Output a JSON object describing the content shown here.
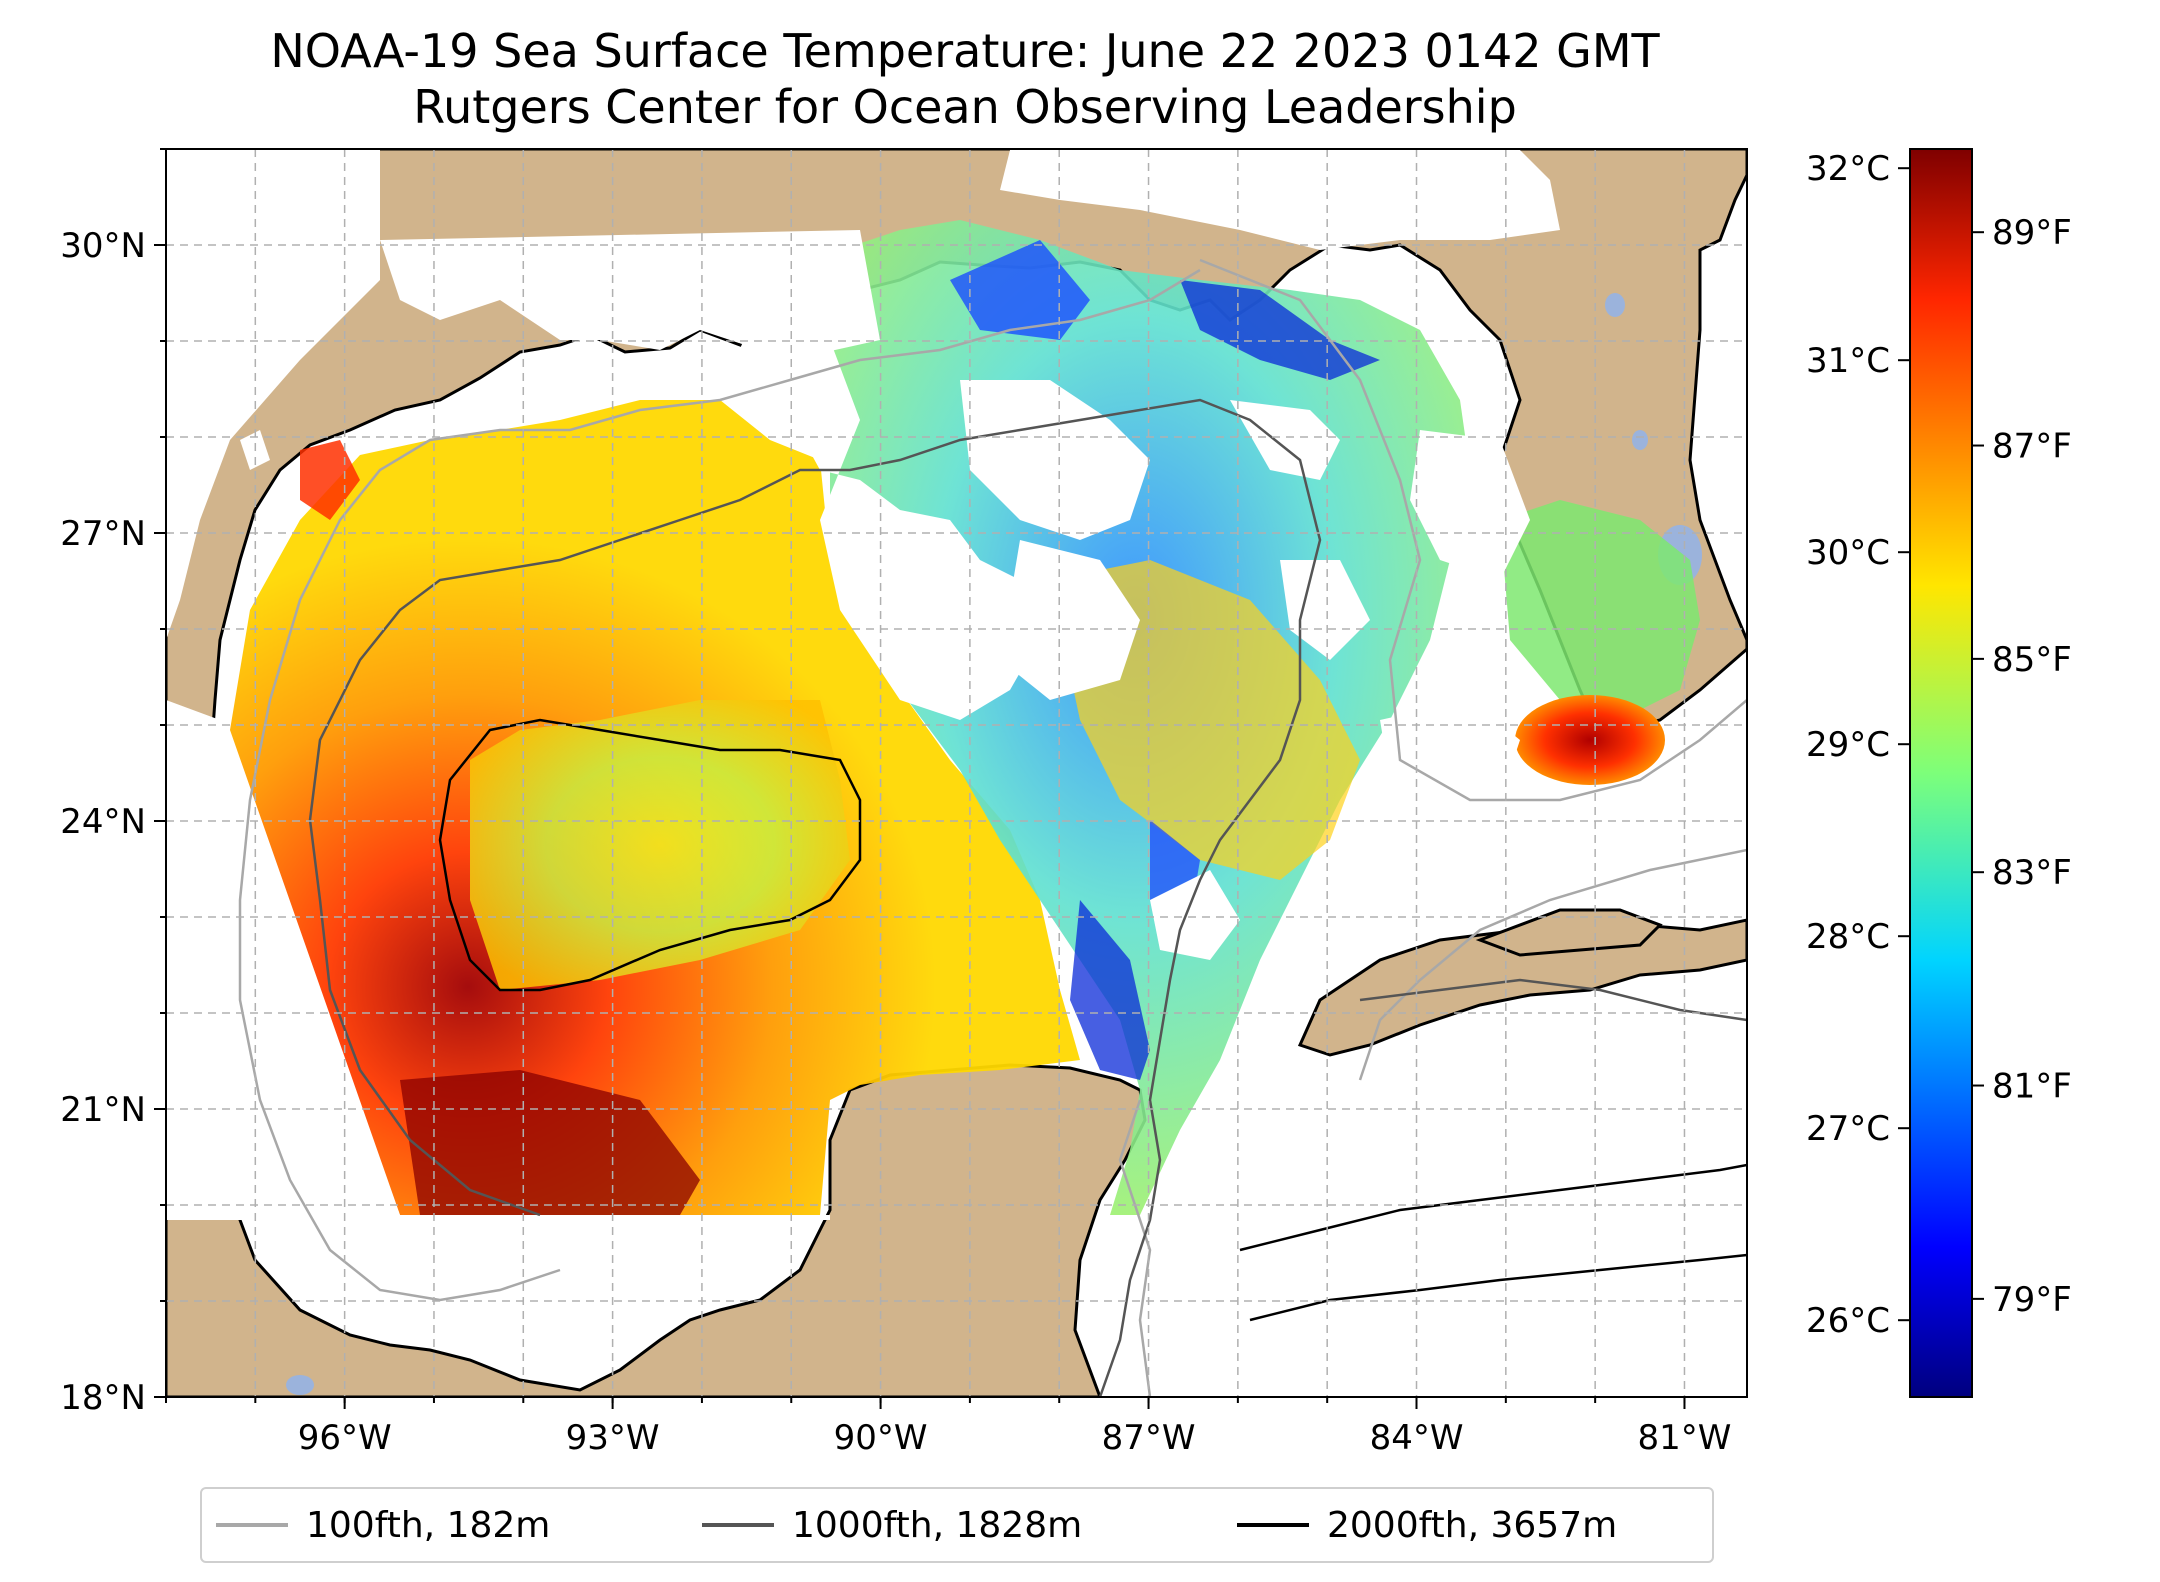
{
  "title": {
    "line1": "NOAA-19 Sea Surface Temperature: June 22 2023 0142 GMT",
    "line2": "Rutgers Center for Ocean Observing Leadership"
  },
  "map": {
    "lon_range": [
      -98.0,
      -80.3
    ],
    "lat_range": [
      18.0,
      31.0
    ],
    "lon_ticks": [
      {
        "value": -96,
        "label": "96°W"
      },
      {
        "value": -93,
        "label": "93°W"
      },
      {
        "value": -90,
        "label": "90°W"
      },
      {
        "value": -87,
        "label": "87°W"
      },
      {
        "value": -84,
        "label": "84°W"
      },
      {
        "value": -81,
        "label": "81°W"
      }
    ],
    "lat_ticks": [
      {
        "value": 30,
        "label": "30°N"
      },
      {
        "value": 27,
        "label": "27°N"
      },
      {
        "value": 24,
        "label": "24°N"
      },
      {
        "value": 21,
        "label": "21°N"
      },
      {
        "value": 18,
        "label": "18°N"
      }
    ],
    "gridlines": true,
    "colors": {
      "land": "#d1b48c",
      "lakes": "#9bb3dc",
      "coastline": "#000000",
      "grid": "#b0b0b0"
    }
  },
  "colorbar": {
    "colormap": "jet",
    "range_celsius": [
      25.6,
      32.1
    ],
    "celsius_ticks": [
      {
        "value": 26,
        "label": "26°C"
      },
      {
        "value": 27,
        "label": "27°C"
      },
      {
        "value": 28,
        "label": "28°C"
      },
      {
        "value": 29,
        "label": "29°C"
      },
      {
        "value": 30,
        "label": "30°C"
      },
      {
        "value": 31,
        "label": "31°C"
      },
      {
        "value": 32,
        "label": "32°C"
      }
    ],
    "fahrenheit_ticks": [
      {
        "value": 79,
        "label": "79°F"
      },
      {
        "value": 81,
        "label": "81°F"
      },
      {
        "value": 83,
        "label": "83°F"
      },
      {
        "value": 85,
        "label": "85°F"
      },
      {
        "value": 87,
        "label": "87°F"
      },
      {
        "value": 89,
        "label": "89°F"
      }
    ]
  },
  "legend": {
    "items": [
      {
        "label": "100fth, 182m",
        "color": "#a8a8a8"
      },
      {
        "label": "1000fth, 1828m",
        "color": "#555555"
      },
      {
        "label": "2000fth, 3657m",
        "color": "#000000"
      }
    ]
  }
}
